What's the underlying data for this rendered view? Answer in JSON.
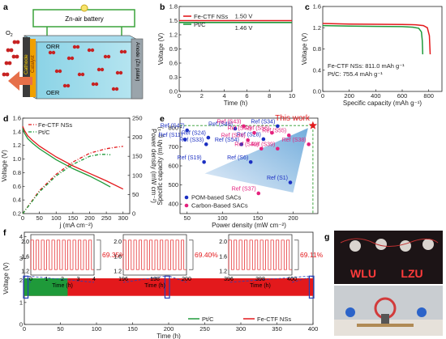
{
  "panels": {
    "a": {
      "label": "a",
      "battery_label": "Zn-air battery",
      "o2_label": "O",
      "o2_sub": "2",
      "orr_label": "ORR",
      "oer_label": "OER",
      "catalyst_label": "Catalyst",
      "cathode_label": "Cathode",
      "anode_label": "Anode (Zn plate)"
    },
    "g": {
      "label": "g",
      "sign_left": "WLU",
      "sign_right": "LZU"
    }
  },
  "chart_data": [
    {
      "id": "b",
      "label": "b",
      "type": "line",
      "xlabel": "Time (h)",
      "ylabel": "Voltage (V)",
      "xlim": [
        0,
        10
      ],
      "ylim": [
        0,
        1.8
      ],
      "xticks": [
        0,
        2,
        4,
        6,
        8,
        10
      ],
      "yticks": [
        0.0,
        0.3,
        0.6,
        0.9,
        1.2,
        1.5,
        1.8
      ],
      "legend": "top-left",
      "series": [
        {
          "name": "Fe-CTF NSs",
          "color": "#e3191c",
          "x": [
            0,
            10
          ],
          "y": [
            1.5,
            1.5
          ],
          "annotation": "1.50 V"
        },
        {
          "name": "Pt/C",
          "color": "#1f9a3a",
          "x": [
            0,
            10
          ],
          "y": [
            1.46,
            1.46
          ],
          "annotation": "1.46 V"
        }
      ]
    },
    {
      "id": "c",
      "label": "c",
      "type": "line",
      "xlabel": "Specific capacity (mAh g⁻¹)",
      "ylabel": "Voltage (V)",
      "xlim": [
        0,
        900
      ],
      "ylim": [
        0,
        1.6
      ],
      "xticks": [
        0,
        200,
        400,
        600,
        800
      ],
      "yticks": [
        0.0,
        0.4,
        0.8,
        1.2,
        1.6
      ],
      "series": [
        {
          "name": "Fe-CTF NSs: 811.0 mAh g⁻¹",
          "color": "#e3191c",
          "x": [
            0,
            200,
            400,
            600,
            700,
            760,
            790,
            805,
            811
          ],
          "y": [
            1.28,
            1.27,
            1.265,
            1.26,
            1.255,
            1.24,
            1.2,
            1.05,
            0.7
          ]
        },
        {
          "name": "Pt/C: 755.4 mAh g⁻¹",
          "color": "#1f9a3a",
          "x": [
            0,
            200,
            400,
            600,
            680,
            725,
            745,
            752,
            755
          ],
          "y": [
            1.24,
            1.23,
            1.225,
            1.22,
            1.21,
            1.19,
            1.12,
            0.95,
            0.7
          ]
        }
      ]
    },
    {
      "id": "d",
      "label": "d",
      "type": "line",
      "xlabel": "j (mA cm⁻²)",
      "ylabel": "Voltage (V)",
      "ylabel2": "Power density (mW cm⁻²)",
      "xlim": [
        0,
        320
      ],
      "ylim": [
        0.2,
        1.6
      ],
      "y2lim": [
        0,
        250
      ],
      "xticks": [
        0,
        50,
        100,
        150,
        200,
        250,
        300
      ],
      "yticks": [
        0.2,
        0.4,
        0.6,
        0.8,
        1.0,
        1.2,
        1.4,
        1.6
      ],
      "y2ticks": [
        0,
        50,
        100,
        150,
        200,
        250
      ],
      "series": [
        {
          "name": "Fe-CTF NSs",
          "color": "#e3191c",
          "axis": "left",
          "x": [
            0,
            5,
            15,
            30,
            50,
            100,
            150,
            200,
            250,
            300
          ],
          "y": [
            1.48,
            1.42,
            1.34,
            1.27,
            1.19,
            1.03,
            0.9,
            0.79,
            0.68,
            0.56
          ]
        },
        {
          "name": "Pt/C",
          "color": "#1f9a3a",
          "axis": "left",
          "x": [
            0,
            5,
            15,
            30,
            50,
            100,
            150,
            200,
            240,
            262
          ],
          "y": [
            1.45,
            1.38,
            1.3,
            1.23,
            1.15,
            0.99,
            0.86,
            0.75,
            0.65,
            0.59
          ]
        },
        {
          "name": "",
          "color": "#e3191c",
          "axis": "right",
          "dash": true,
          "x": [
            0,
            50,
            100,
            150,
            200,
            250,
            280,
            300
          ],
          "y": [
            0,
            60,
            103,
            135,
            158,
            170,
            174,
            176
          ]
        },
        {
          "name": "",
          "color": "#1f9a3a",
          "axis": "right",
          "dash": true,
          "x": [
            0,
            50,
            100,
            150,
            200,
            230,
            250,
            262
          ],
          "y": [
            0,
            57,
            99,
            129,
            150,
            155,
            155,
            154
          ]
        }
      ]
    },
    {
      "id": "e",
      "label": "e",
      "type": "scatter",
      "xlabel": "Power density (mW cm⁻²)",
      "ylabel": "Specific capacity (mAh g⁻¹)",
      "xlim": [
        40,
        235
      ],
      "ylim": [
        350,
        850
      ],
      "xticks": [
        50,
        100,
        150,
        200
      ],
      "yticks": [
        400,
        500,
        600,
        700,
        800
      ],
      "annotation": "This work",
      "highlight": {
        "x": 228,
        "y": 811
      },
      "series": [
        {
          "name": "POM-based SACs",
          "color": "#1b2fc2",
          "points": [
            {
              "x": 50,
              "y": 786,
              "label": "Ref (S47)"
            },
            {
              "x": 47,
              "y": 738,
              "label": "Ref (S11)"
            },
            {
              "x": 80,
              "y": 748,
              "label": "Ref (S24)"
            },
            {
              "x": 77,
              "y": 713,
              "label": "Ref (S33)"
            },
            {
              "x": 74,
              "y": 620,
              "label": "Ref (S19)"
            },
            {
              "x": 118,
              "y": 795,
              "label": "Ref (S48)"
            },
            {
              "x": 127,
              "y": 713,
              "label": "Ref (S54)"
            },
            {
              "x": 140,
              "y": 620,
              "label": "Ref (S6)"
            },
            {
              "x": 158,
              "y": 740,
              "label": "Ref (S28)"
            },
            {
              "x": 178,
              "y": 808,
              "label": "Ref (S34)"
            },
            {
              "x": 196,
              "y": 513,
              "label": "Ref (S1)"
            }
          ]
        },
        {
          "name": "Carbon-Based SACs",
          "color": "#e4217d",
          "points": [
            {
              "x": 130,
              "y": 808,
              "label": "Ref (S43)"
            },
            {
              "x": 145,
              "y": 773,
              "label": "Ref (S42)"
            },
            {
              "x": 136,
              "y": 735,
              "label": "Ref (S36)"
            },
            {
              "x": 170,
              "y": 773,
              "label": "Ref (S56)"
            },
            {
              "x": 155,
              "y": 690,
              "label": "Ref (S40)"
            },
            {
              "x": 178,
              "y": 690,
              "label": "Ref (S39)"
            },
            {
              "x": 194,
              "y": 760,
              "label": "Ref (S55)"
            },
            {
              "x": 222,
              "y": 713,
              "label": "Ref (S38)"
            },
            {
              "x": 151,
              "y": 456,
              "label": "Ref (S37)"
            }
          ]
        }
      ]
    },
    {
      "id": "f",
      "label": "f",
      "type": "line",
      "xlabel": "Time (h)",
      "ylabel": "Voltage (V)",
      "xlim": [
        0,
        400
      ],
      "ylim": [
        0,
        4.2
      ],
      "xticks": [
        0,
        50,
        100,
        150,
        200,
        250,
        300,
        350,
        400
      ],
      "yticks": [
        0,
        1,
        2,
        3,
        4
      ],
      "series": [
        {
          "name": "Pt/C",
          "color": "#1f9a3a",
          "x": [
            0,
            60
          ],
          "band": [
            1.3,
            2.1
          ]
        },
        {
          "name": "Fe-CTF NSs",
          "color": "#e3191c",
          "x": [
            0,
            400
          ],
          "band": [
            1.3,
            2.1
          ]
        }
      ],
      "insets": [
        {
          "xticks": [
            0,
            1,
            2,
            3,
            4
          ],
          "xlim": [
            0,
            4
          ],
          "ylim": [
            1.1,
            2.2
          ],
          "xlabel": "Time (h)",
          "efficiency": "69.35%"
        },
        {
          "xticks": [
            196,
            198,
            200
          ],
          "xlim": [
            196,
            200
          ],
          "ylim": [
            1.1,
            2.2
          ],
          "xlabel": "Time (h)",
          "efficiency": "69.40%"
        },
        {
          "xticks": [
            396,
            398,
            400
          ],
          "xlim": [
            396,
            400
          ],
          "ylim": [
            1.1,
            2.2
          ],
          "xlabel": "Time (h)",
          "efficiency": "69.11%"
        }
      ],
      "inset_yticks": [
        1.2,
        1.6,
        2.0
      ]
    }
  ]
}
